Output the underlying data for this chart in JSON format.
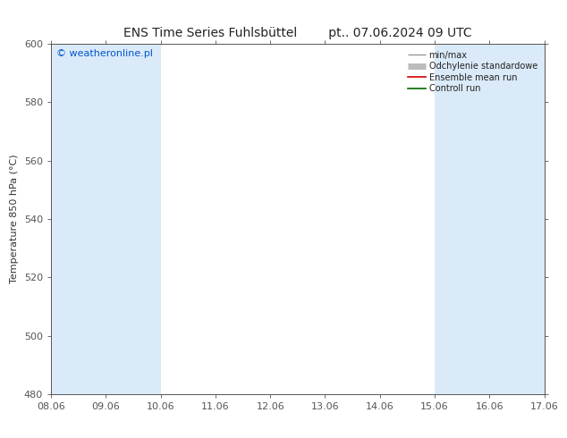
{
  "title_left": "ENS Time Series Fuhlsbüttel",
  "title_right": "pt.. 07.06.2024 09 UTC",
  "ylabel": "Temperature 850 hPa (°C)",
  "ylim": [
    480,
    600
  ],
  "yticks": [
    480,
    500,
    520,
    540,
    560,
    580,
    600
  ],
  "xlim": [
    0,
    9
  ],
  "xtick_labels": [
    "08.06",
    "09.06",
    "10.06",
    "11.06",
    "12.06",
    "13.06",
    "14.06",
    "15.06",
    "16.06",
    "17.06"
  ],
  "watermark": "© weatheronline.pl",
  "watermark_color": "#0055cc",
  "bg_color": "#ffffff",
  "plot_bg_color": "#ffffff",
  "shaded_bands": [
    {
      "x_start": 0,
      "x_end": 1,
      "color": "#daeaf8"
    },
    {
      "x_start": 1,
      "x_end": 2,
      "color": "#daeaf8"
    },
    {
      "x_start": 7,
      "x_end": 8,
      "color": "#daeaf8"
    },
    {
      "x_start": 8,
      "x_end": 9,
      "color": "#daeaf8"
    }
  ],
  "legend_entries": [
    {
      "label": "min/max",
      "color": "#999999",
      "lw": 1.0,
      "style": "line_with_caps"
    },
    {
      "label": "Odchylenie standardowe",
      "color": "#bbbbbb",
      "lw": 5,
      "style": "thick"
    },
    {
      "label": "Ensemble mean run",
      "color": "#cc0000",
      "lw": 1.2,
      "style": "line"
    },
    {
      "label": "Controll run",
      "color": "#006600",
      "lw": 1.2,
      "style": "line"
    }
  ],
  "title_fontsize": 10,
  "axis_label_fontsize": 8,
  "tick_fontsize": 8,
  "border_color": "#555555",
  "tick_color": "#555555",
  "spine_color": "#555555"
}
